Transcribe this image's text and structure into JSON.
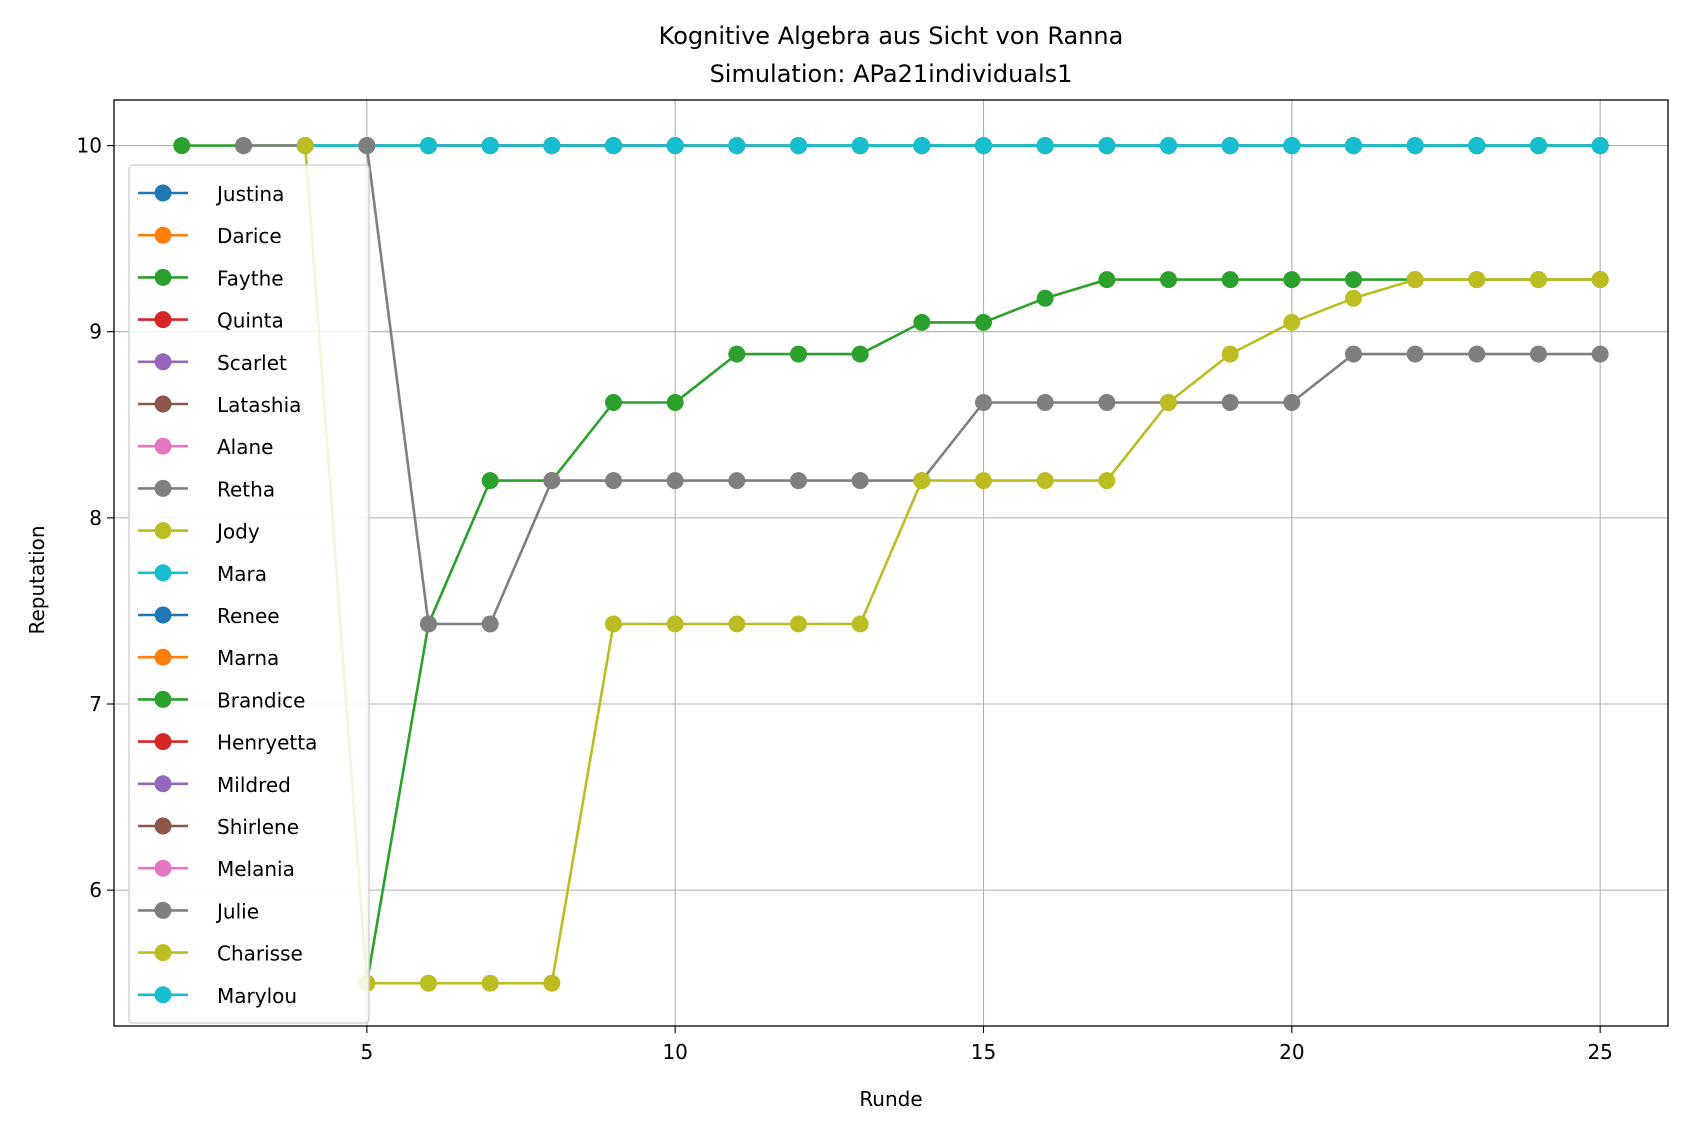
{
  "chart_data": {
    "type": "line",
    "title": "Kognitive Algebra aus Sicht von Ranna",
    "subtitle": "Simulation: APa21individuals1",
    "xlabel": "Runde",
    "ylabel": "Reputation",
    "xlim": [
      0.9,
      26.1
    ],
    "ylim": [
      5.27,
      10.245
    ],
    "xticks": [
      5,
      10,
      15,
      20,
      25
    ],
    "yticks": [
      6,
      7,
      8,
      9,
      10
    ],
    "grid": true,
    "legend_position": "left",
    "series": [
      {
        "name": "Justina",
        "color": "#1f77b4",
        "x": [],
        "y": []
      },
      {
        "name": "Darice",
        "color": "#ff7f0e",
        "x": [
          5
        ],
        "y": [
          10
        ]
      },
      {
        "name": "Faythe",
        "color": "#2ca02c",
        "x": [
          2,
          3,
          4,
          5,
          6,
          7,
          8,
          9,
          10,
          11,
          12,
          13,
          14,
          15,
          16,
          17,
          18,
          19,
          20,
          21,
          22,
          23,
          24,
          25
        ],
        "y": [
          10,
          10,
          10,
          10,
          10,
          10,
          10,
          10,
          10,
          10,
          10,
          10,
          10,
          10,
          10,
          10,
          10,
          10,
          10,
          10,
          10,
          10,
          10,
          10
        ]
      },
      {
        "name": "Quinta",
        "color": "#d62728",
        "x": [
          6,
          7,
          8,
          9,
          10,
          11,
          12,
          13,
          14,
          15,
          16,
          17,
          18,
          19,
          20,
          21,
          22,
          23,
          24,
          25
        ],
        "y": [
          10,
          10,
          10,
          10,
          10,
          10,
          10,
          10,
          10,
          10,
          10,
          10,
          10,
          10,
          10,
          10,
          10,
          10,
          10,
          10
        ]
      },
      {
        "name": "Scarlet",
        "color": "#9467bd",
        "x": [],
        "y": []
      },
      {
        "name": "Latashia",
        "color": "#8c564b",
        "x": [
          7,
          8,
          9,
          10,
          11,
          12,
          13,
          14,
          15,
          16,
          17,
          18,
          19,
          20,
          21,
          22,
          23,
          24,
          25
        ],
        "y": [
          10,
          10,
          10,
          10,
          10,
          10,
          10,
          10,
          10,
          10,
          10,
          10,
          10,
          10,
          10,
          10,
          10,
          10,
          10
        ]
      },
      {
        "name": "Alane",
        "color": "#e377c2",
        "x": [
          9,
          10,
          11,
          12,
          13,
          14,
          15,
          16,
          17,
          18,
          19,
          20,
          21,
          22,
          23,
          24,
          25
        ],
        "y": [
          10,
          10,
          10,
          10,
          10,
          10,
          10,
          10,
          10,
          10,
          10,
          10,
          10,
          10,
          10,
          10,
          10
        ]
      },
      {
        "name": "Retha",
        "color": "#7f7f7f",
        "x": [
          3,
          4,
          5,
          6,
          7,
          8,
          9,
          10,
          11,
          12,
          13,
          14,
          15,
          16,
          17,
          18,
          19,
          20,
          21,
          22,
          23,
          24,
          25
        ],
        "y": [
          10,
          10,
          10,
          10,
          10,
          10,
          10,
          10,
          10,
          10,
          10,
          10,
          10,
          10,
          10,
          10,
          10,
          10,
          10,
          10,
          10,
          10,
          10
        ]
      },
      {
        "name": "Jody",
        "color": "#bcbd22",
        "x": [
          10,
          11,
          12,
          13,
          14,
          15,
          16,
          17,
          18,
          19,
          20,
          21,
          22,
          23,
          24,
          25
        ],
        "y": [
          10,
          10,
          10,
          10,
          10,
          10,
          10,
          10,
          10,
          10,
          10,
          10,
          10,
          10,
          10,
          10
        ]
      },
      {
        "name": "Mara",
        "color": "#17becf",
        "x": [
          4,
          5,
          6,
          7,
          8,
          9,
          10,
          11,
          12,
          13,
          14,
          15,
          16,
          17,
          18,
          19,
          20,
          21,
          22,
          23,
          24,
          25
        ],
        "y": [
          10,
          10,
          10,
          10,
          10,
          10,
          10,
          10,
          10,
          10,
          10,
          10,
          10,
          10,
          10,
          10,
          10,
          10,
          10,
          10,
          10,
          10
        ]
      },
      {
        "name": "Renee",
        "color": "#1f77b4",
        "x": [],
        "y": []
      },
      {
        "name": "Marna",
        "color": "#ff7f0e",
        "x": [],
        "y": []
      },
      {
        "name": "Brandice",
        "color": "#2ca02c",
        "x": [
          5,
          6,
          7,
          8,
          9,
          10,
          11,
          12,
          13,
          14,
          15,
          16,
          17,
          18,
          19,
          20,
          21,
          22,
          23,
          24,
          25
        ],
        "y": [
          5.5,
          7.43,
          8.2,
          8.2,
          8.62,
          8.62,
          8.88,
          8.88,
          8.88,
          9.05,
          9.05,
          9.18,
          9.28,
          9.28,
          9.28,
          9.28,
          9.28,
          9.28,
          9.28,
          9.28,
          9.28
        ]
      },
      {
        "name": "Henryetta",
        "color": "#d62728",
        "x": [],
        "y": []
      },
      {
        "name": "Mildred",
        "color": "#9467bd",
        "x": [],
        "y": []
      },
      {
        "name": "Shirlene",
        "color": "#8c564b",
        "x": [],
        "y": []
      },
      {
        "name": "Melania",
        "color": "#e377c2",
        "x": [],
        "y": []
      },
      {
        "name": "Julie",
        "color": "#7f7f7f",
        "x": [
          5,
          6,
          7,
          8,
          9,
          10,
          11,
          12,
          13,
          14,
          15,
          16,
          17,
          18,
          19,
          20,
          21,
          22,
          23,
          24,
          25
        ],
        "y": [
          10,
          7.43,
          7.43,
          8.2,
          8.2,
          8.2,
          8.2,
          8.2,
          8.2,
          8.2,
          8.62,
          8.62,
          8.62,
          8.62,
          8.62,
          8.62,
          8.88,
          8.88,
          8.88,
          8.88,
          8.88
        ]
      },
      {
        "name": "Charisse",
        "color": "#bcbd22",
        "x": [
          4,
          5,
          6,
          7,
          8,
          9,
          10,
          11,
          12,
          13,
          14,
          15,
          16,
          17,
          18,
          19,
          20,
          21,
          22,
          23,
          24,
          25
        ],
        "y": [
          10,
          5.5,
          5.5,
          5.5,
          5.5,
          7.43,
          7.43,
          7.43,
          7.43,
          7.43,
          8.2,
          8.2,
          8.2,
          8.2,
          8.62,
          8.88,
          9.05,
          9.18,
          9.28,
          9.28,
          9.28,
          9.28
        ]
      },
      {
        "name": "Marylou",
        "color": "#17becf",
        "x": [
          12,
          13,
          14,
          15,
          16,
          17,
          18,
          19,
          20,
          21,
          22,
          23,
          24,
          25
        ],
        "y": [
          10,
          10,
          10,
          10,
          10,
          10,
          10,
          10,
          10,
          10,
          10,
          10,
          10,
          10
        ]
      }
    ]
  }
}
